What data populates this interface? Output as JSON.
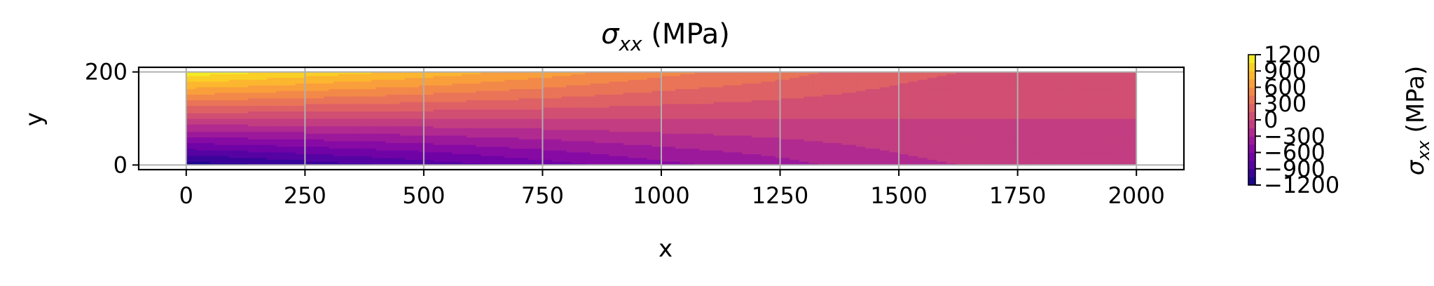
{
  "chart_data": {
    "type": "heatmap",
    "title_main": "σ",
    "title_sub": "xx",
    "title_rest": " (MPa)",
    "xlabel": "x",
    "ylabel": "y",
    "xlim": [
      -100,
      2100
    ],
    "ylim": [
      -10,
      210
    ],
    "x_ticks": [
      "0",
      "250",
      "500",
      "750",
      "1000",
      "1250",
      "1500",
      "1750",
      "2000"
    ],
    "x_tick_values": [
      0,
      250,
      500,
      750,
      1000,
      1250,
      1500,
      1750,
      2000
    ],
    "y_ticks": [
      "0",
      "200"
    ],
    "y_tick_values": [
      0,
      200
    ],
    "domain": {
      "x": [
        0,
        2000
      ],
      "y": [
        0,
        200
      ]
    },
    "grid": true,
    "colormap": "plasma",
    "colorbar": {
      "label_main": "σ",
      "label_sub": "xx",
      "label_rest": " (MPa)",
      "range": [
        -1200,
        1200
      ],
      "ticks": [
        "1200",
        "900",
        "600",
        "300",
        "0",
        "−300",
        "−600",
        "−900",
        "−1200"
      ],
      "tick_values": [
        1200,
        900,
        600,
        300,
        0,
        -300,
        -600,
        -900,
        -1200
      ]
    },
    "field": {
      "description_of_values": "stress at top edge (y=200) and bottom edge (y=0) along x, linear through depth",
      "x": [
        0,
        250,
        500,
        750,
        1000,
        1250,
        1500,
        1750,
        2000
      ],
      "top_values": [
        1150,
        1000,
        850,
        680,
        500,
        360,
        200,
        100,
        0
      ],
      "bottom_values": [
        -1150,
        -1000,
        -850,
        -680,
        -500,
        -360,
        -200,
        -100,
        0
      ]
    }
  }
}
